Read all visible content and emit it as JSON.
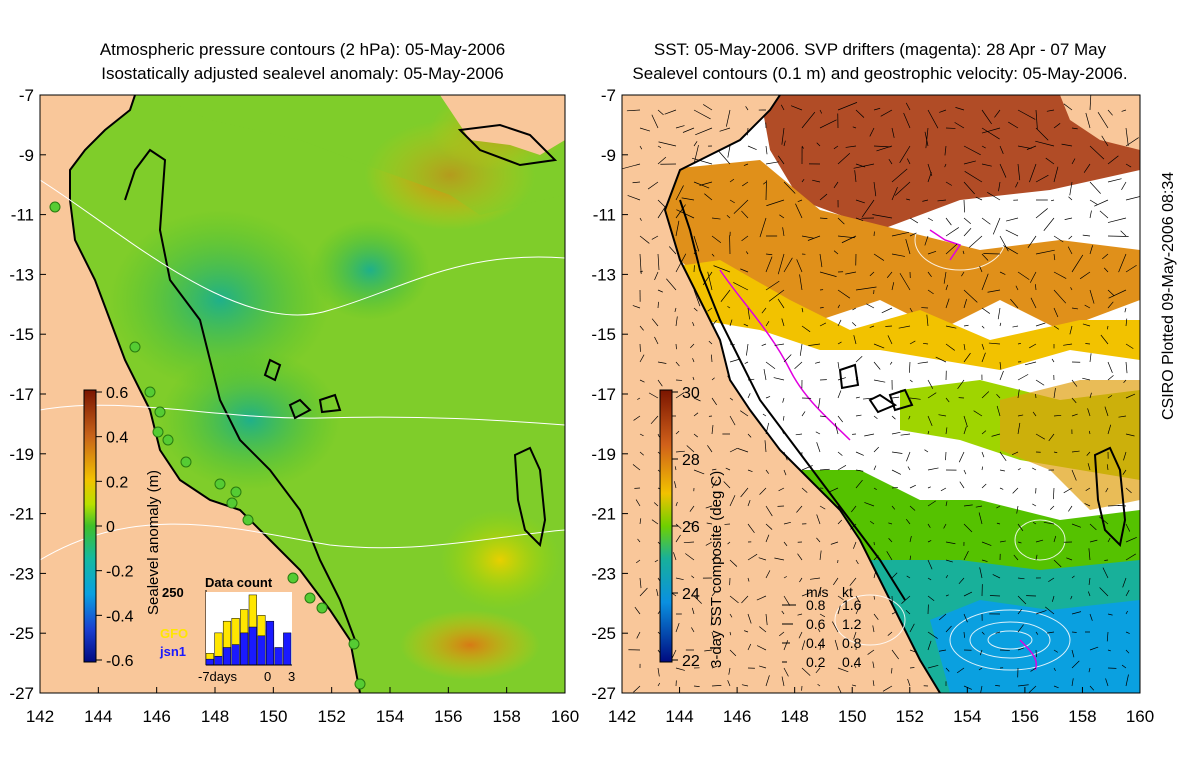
{
  "left_panel": {
    "title_line1": "Atmospheric pressure contours (2 hPa): 05-May-2006",
    "title_line2": "Isostatically adjusted sealevel anomaly: 05-May-2006",
    "colorbar_label": "Sealevel anomaly (m)",
    "colorbar_ticks": [
      "0.6",
      "0.4",
      "0.2",
      "0",
      "-0.2",
      "-0.4",
      "-0.6"
    ],
    "inset": {
      "title": "Data count",
      "max_label": "250",
      "legend_gfo": "GFO",
      "legend_jsn1": "jsn1",
      "x_label_left": "-7days",
      "x_label_mid": "0",
      "x_label_right": "3",
      "gfo_color": "#ffe600",
      "jsn1_color": "#1a1aff",
      "gfo_counts": [
        40,
        110,
        150,
        160,
        190,
        240,
        170,
        120,
        0,
        0
      ],
      "jsn1_counts": [
        20,
        30,
        60,
        70,
        110,
        130,
        100,
        150,
        60,
        110
      ]
    }
  },
  "right_panel": {
    "title_line1": "SST: 05-May-2006. SVP drifters (magenta): 28 Apr - 07 May",
    "title_line2": "Sealevel contours (0.1 m) and geostrophic velocity: 05-May-2006.",
    "colorbar_label": "3-day SST composite (deg C)",
    "colorbar_ticks": [
      "30",
      "28",
      "26",
      "24",
      "22"
    ],
    "vector_legend_header_ms": "m/s",
    "vector_legend_header_kt": "kt",
    "vector_legend": [
      {
        "ms": "0.8",
        "kt": "1.6"
      },
      {
        "ms": "0.6",
        "kt": "1.2"
      },
      {
        "ms": "0.4",
        "kt": "0.8"
      },
      {
        "ms": "0.2",
        "kt": "0.4"
      }
    ]
  },
  "axes": {
    "y_ticks": [
      "-7",
      "-9",
      "-11",
      "-13",
      "-15",
      "-17",
      "-19",
      "-21",
      "-23",
      "-25",
      "-27"
    ],
    "x_ticks": [
      "142",
      "144",
      "146",
      "148",
      "150",
      "152",
      "154",
      "156",
      "158",
      "160"
    ]
  },
  "credit": "CSIRO Plotted 09-May-2006 08:34",
  "colors": {
    "land": "#f9c79a",
    "drifter": "#e000e0",
    "coastline": "#000000",
    "tide_gauge": "#55cc33"
  }
}
